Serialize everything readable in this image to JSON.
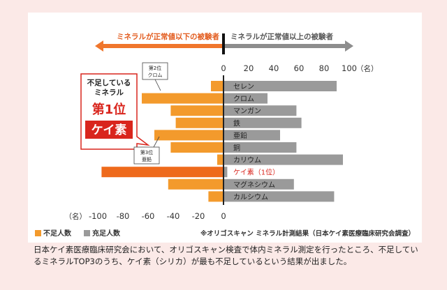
{
  "colors": {
    "deficient": "#f39a2c",
    "sufficient": "#9a9a9a",
    "highlight": "#ee6a1c",
    "red": "#d9251d",
    "arrow_orange": "#f0762c",
    "arrow_gray": "#8d8d8d"
  },
  "header": {
    "left_arrow_label": "ミネラルが正常値以下の被験者",
    "right_arrow_label": "ミネラルが正常値以上の被験者"
  },
  "callout": {
    "line1": "不足している",
    "line2": "ミネラル",
    "rank_label": "第1位",
    "mineral_label": "ケイ素"
  },
  "small_tags": [
    {
      "rank": "第2位",
      "name": "クロム"
    },
    {
      "rank": "第3位",
      "name": "亜鉛"
    }
  ],
  "legend": {
    "deficient_label": "不足人数",
    "sufficient_label": "充足人数",
    "note": "※オリゴスキャン ミネラル計測結果（日本ケイ素医療臨床研究会調査）"
  },
  "caption": "日本ケイ素医療臨床研究会において、オリゴスキャン検査で体内ミネラル測定を行ったところ、不足しているミネラルTOP3のうち、ケイ素（シリカ）が最も不足しているという結果が出ました。",
  "chart_data": {
    "type": "bar",
    "orientation": "horizontal-diverging",
    "categories": [
      "セレン",
      "クロム",
      "マンガン",
      "鉄",
      "亜鉛",
      "銅",
      "カリウム",
      "ケイ素（1位）",
      "マグネシウム",
      "カルシウム"
    ],
    "series": [
      {
        "name": "不足人数",
        "values": [
          -10,
          -65,
          -42,
          -38,
          -55,
          -42,
          -5,
          -97,
          -44,
          -12
        ]
      },
      {
        "name": "充足人数",
        "values": [
          90,
          35,
          58,
          62,
          45,
          58,
          95,
          3,
          56,
          88
        ]
      }
    ],
    "top_axis": {
      "ticks": [
        "0",
        "20",
        "40",
        "60",
        "80",
        "100"
      ],
      "unit": "（名）"
    },
    "bottom_axis": {
      "ticks": [
        "-100",
        "-80",
        "-60",
        "-40",
        "-20",
        "0"
      ],
      "unit": "（名）"
    },
    "xlim": [
      -100,
      100
    ],
    "highlight_category": "ケイ素（1位）"
  }
}
